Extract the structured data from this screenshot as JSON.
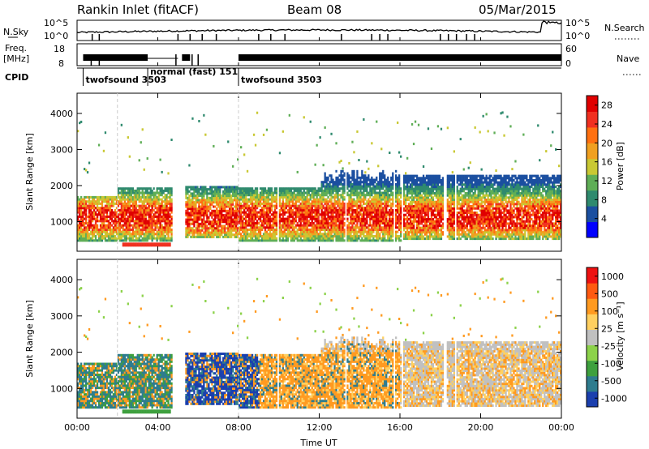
{
  "header": {
    "station": "Rankin Inlet (fitACF)",
    "beam": "Beam 08",
    "date": "05/Mar/2015"
  },
  "top_panels": {
    "nsky_label": "N.Sky",
    "nsky_ticks": [
      "10^5",
      "10^0"
    ],
    "nsearch_label": "N.Search",
    "nsearch_ticks": [
      "10^5",
      "10^0"
    ],
    "freq_label": "Freq.",
    "freq_unit": "[MHz]",
    "freq_ticks": [
      "18",
      "8"
    ],
    "nave_label": "Nave",
    "nave_ticks": [
      "60",
      "0"
    ],
    "cpid_label": "CPID",
    "cpid_segments": [
      {
        "start": 0.3,
        "label": "twofsound 3503"
      },
      {
        "start": 3.5,
        "label": "normal (fast) 151"
      },
      {
        "start": 8.0,
        "label": "twofsound 3503"
      }
    ]
  },
  "chart_data": [
    {
      "type": "heatmap",
      "quantity": "power",
      "xlabel": "",
      "ylabel": "Slant Range [km]",
      "x_ticks": [
        "00:00",
        "04:00",
        "08:00",
        "12:00",
        "16:00",
        "20:00",
        "00:00"
      ],
      "y_ticks": [
        "1000",
        "2000",
        "3000",
        "4000"
      ],
      "xlim_hours": [
        0,
        24
      ],
      "ylim_km": [
        180,
        4560
      ],
      "colorbar": {
        "label": "Power [dB]",
        "ticks": [
          "4",
          "8",
          "12",
          "16",
          "20",
          "24",
          "28"
        ],
        "range": [
          0,
          30
        ],
        "colors": [
          "#0000ff",
          "#1b4fa0",
          "#2f8a6e",
          "#5fae56",
          "#c9c833",
          "#f0a020",
          "#ff7010",
          "#f03020",
          "#e00000"
        ]
      }
    },
    {
      "type": "heatmap",
      "quantity": "velocity",
      "xlabel": "Time UT",
      "ylabel": "Slant Range [km]",
      "x_ticks": [
        "00:00",
        "04:00",
        "08:00",
        "12:00",
        "16:00",
        "20:00",
        "00:00"
      ],
      "y_ticks": [
        "1000",
        "2000",
        "3000",
        "4000"
      ],
      "xlim_hours": [
        0,
        24
      ],
      "ylim_km": [
        180,
        4560
      ],
      "colorbar": {
        "label": "Velocity [m s⁻¹]",
        "ticks": [
          "1000",
          "500",
          "100",
          "25",
          "-25",
          "-100",
          "-500",
          "-1000"
        ],
        "colors": [
          "#1b3fae",
          "#2e7c8e",
          "#3ea03e",
          "#8cd24a",
          "#c0c0c0",
          "#ffd060",
          "#ff9a20",
          "#ff5a10",
          "#ee1111"
        ]
      }
    }
  ]
}
